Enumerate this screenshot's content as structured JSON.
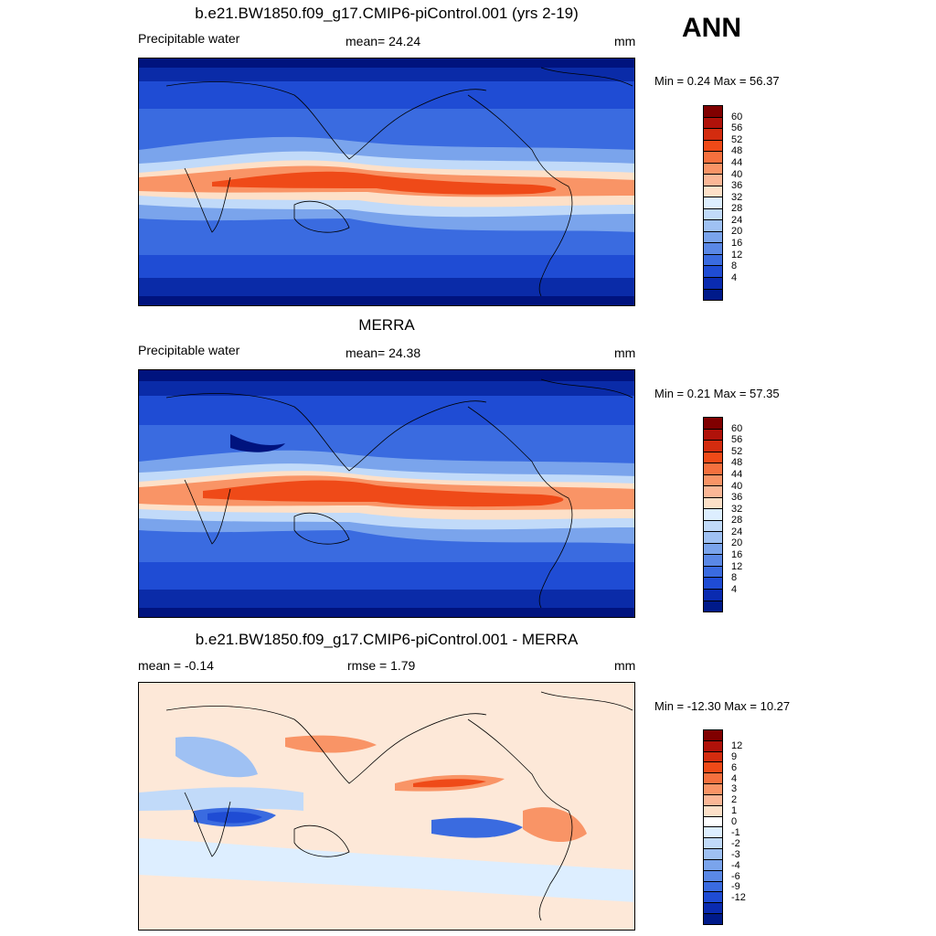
{
  "season": "ANN",
  "panels": [
    {
      "id": "model",
      "title": "b.e21.BW1850.f09_g17.CMIP6-piControl.001 (yrs 2-19)",
      "left_label": "Precipitable water",
      "center_label": "mean=  24.24",
      "units": "mm",
      "minmax": "Min =   0.24 Max =  56.37",
      "colorbar": {
        "colors": [
          "#800000",
          "#b0120a",
          "#d32c0f",
          "#ef4a18",
          "#f5703e",
          "#f99466",
          "#fbb796",
          "#fde0c8",
          "#ddeeff",
          "#c1daf9",
          "#9fc1f3",
          "#7aa4ec",
          "#5a88e6",
          "#3a6be0",
          "#1f4cd4",
          "#0a2bb0",
          "#001a8a"
        ],
        "labels": [
          "60",
          "56",
          "52",
          "48",
          "44",
          "40",
          "36",
          "32",
          "28",
          "24",
          "20",
          "16",
          "12",
          "8",
          "4"
        ]
      },
      "map_colors": [
        "#00137e",
        "#0a2ba8",
        "#1f4cd4",
        "#3a6be0",
        "#7aa4ec",
        "#c1daf9",
        "#fde0c8",
        "#f99466",
        "#ef4a18"
      ]
    },
    {
      "id": "obs",
      "title": "MERRA",
      "left_label": "Precipitable water",
      "center_label": "mean=  24.38",
      "units": "mm",
      "minmax": "Min =   0.21 Max =  57.35",
      "colorbar": {
        "colors": [
          "#800000",
          "#b0120a",
          "#d32c0f",
          "#ef4a18",
          "#f5703e",
          "#f99466",
          "#fbb796",
          "#fde0c8",
          "#ddeeff",
          "#c1daf9",
          "#9fc1f3",
          "#7aa4ec",
          "#5a88e6",
          "#3a6be0",
          "#1f4cd4",
          "#0a2bb0",
          "#001a8a"
        ],
        "labels": [
          "60",
          "56",
          "52",
          "48",
          "44",
          "40",
          "36",
          "32",
          "28",
          "24",
          "20",
          "16",
          "12",
          "8",
          "4"
        ]
      },
      "map_colors": [
        "#00137e",
        "#0a2ba8",
        "#1f4cd4",
        "#3a6be0",
        "#7aa4ec",
        "#c1daf9",
        "#fde0c8",
        "#f99466",
        "#ef4a18"
      ]
    },
    {
      "id": "diff",
      "title": "b.e21.BW1850.f09_g17.CMIP6-piControl.001 - MERRA",
      "left_label": "mean =  -0.14",
      "center_label": "rmse =   1.79",
      "units": "mm",
      "minmax": "Min = -12.30 Max =  10.27",
      "colorbar": {
        "colors": [
          "#800000",
          "#b0120a",
          "#d32c0f",
          "#ef4a18",
          "#f5703e",
          "#f99466",
          "#fbb796",
          "#fde0c8",
          "#ffffff",
          "#ddeeff",
          "#c1daf9",
          "#9fc1f3",
          "#7aa4ec",
          "#5a88e6",
          "#3a6be0",
          "#1f4cd4",
          "#0a2bb0",
          "#001a8a"
        ],
        "labels": [
          "12",
          "9",
          "6",
          "4",
          "3",
          "2",
          "1",
          "0",
          "-1",
          "-2",
          "-3",
          "-4",
          "-6",
          "-9",
          "-12"
        ]
      },
      "map_colors": [
        "#fde8d8"
      ]
    }
  ]
}
